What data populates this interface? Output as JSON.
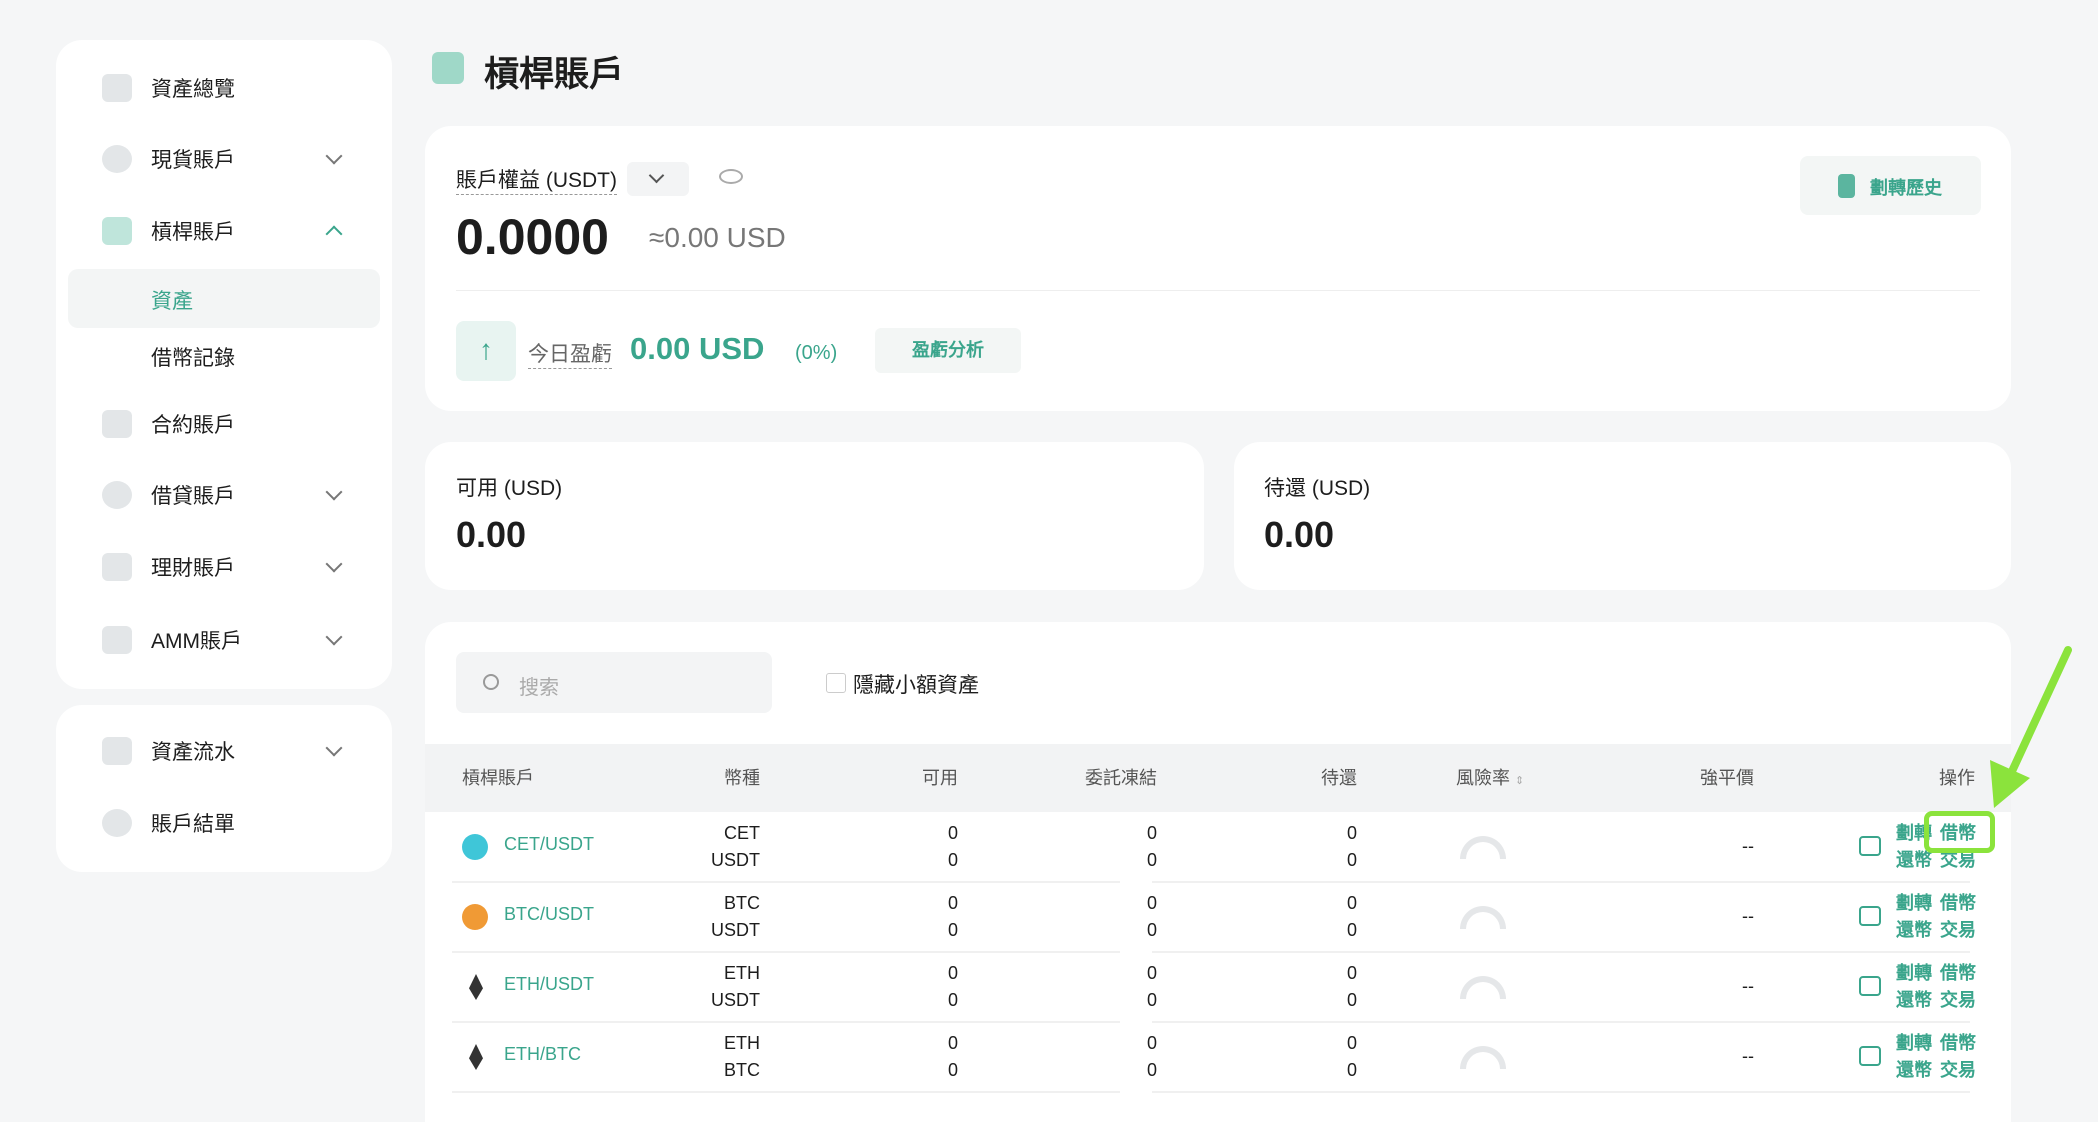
{
  "sidebar": {
    "items": [
      {
        "label": "資產總覽",
        "icon": "overview-icon"
      },
      {
        "label": "現貨賬戶",
        "icon": "spot-icon",
        "expandable": true
      },
      {
        "label": "槓桿賬戶",
        "icon": "margin-icon",
        "expanded": true,
        "children": [
          {
            "label": "資產",
            "active": true
          },
          {
            "label": "借幣記錄"
          }
        ]
      },
      {
        "label": "合約賬戶",
        "icon": "futures-icon"
      },
      {
        "label": "借貸賬戶",
        "icon": "loan-icon",
        "expandable": true
      },
      {
        "label": "理財賬戶",
        "icon": "finance-icon",
        "expandable": true
      },
      {
        "label": "AMM賬戶",
        "icon": "amm-icon",
        "expandable": true
      }
    ],
    "secondary": [
      {
        "label": "資產流水",
        "expandable": true
      },
      {
        "label": "賬戶結單"
      }
    ]
  },
  "header": {
    "title": "槓桿賬戶"
  },
  "equity": {
    "label": "賬戶權益 (USDT)",
    "value": "0.0000",
    "approx": "≈0.00 USD",
    "transfer_history": "劃轉歷史",
    "today_pnl_label": "今日盈虧",
    "today_pnl": "0.00 USD",
    "today_pnl_pct": "(0%)",
    "pnl_analysis": "盈虧分析"
  },
  "available": {
    "label": "可用 (USD)",
    "value": "0.00"
  },
  "pending": {
    "label": "待還 (USD)",
    "value": "0.00"
  },
  "filters": {
    "search_placeholder": "搜索",
    "hide_small": "隱藏小額資產"
  },
  "table": {
    "headers": [
      "槓桿賬戶",
      "幣種",
      "可用",
      "委託凍結",
      "待還",
      "風險率",
      "強平價",
      "操作"
    ],
    "rows": [
      {
        "pair": "CET/USDT",
        "icon": "cet-icon",
        "coins": [
          "CET",
          "USDT"
        ],
        "available": [
          "0",
          "0"
        ],
        "frozen": [
          "0",
          "0"
        ],
        "pending": [
          "0",
          "0"
        ],
        "liq": "--"
      },
      {
        "pair": "BTC/USDT",
        "icon": "btc-icon",
        "coins": [
          "BTC",
          "USDT"
        ],
        "available": [
          "0",
          "0"
        ],
        "frozen": [
          "0",
          "0"
        ],
        "pending": [
          "0",
          "0"
        ],
        "liq": "--"
      },
      {
        "pair": "ETH/USDT",
        "icon": "eth-icon",
        "coins": [
          "ETH",
          "USDT"
        ],
        "available": [
          "0",
          "0"
        ],
        "frozen": [
          "0",
          "0"
        ],
        "pending": [
          "0",
          "0"
        ],
        "liq": "--"
      },
      {
        "pair": "ETH/BTC",
        "icon": "eth-icon",
        "coins": [
          "ETH",
          "BTC"
        ],
        "available": [
          "0",
          "0"
        ],
        "frozen": [
          "0",
          "0"
        ],
        "pending": [
          "0",
          "0"
        ],
        "liq": "--"
      }
    ],
    "actions": {
      "transfer": "劃轉",
      "borrow": "借幣",
      "repay": "還幣",
      "trade": "交易"
    }
  },
  "colors": {
    "accent": "#3aa58c",
    "highlight": "#8be33c"
  }
}
